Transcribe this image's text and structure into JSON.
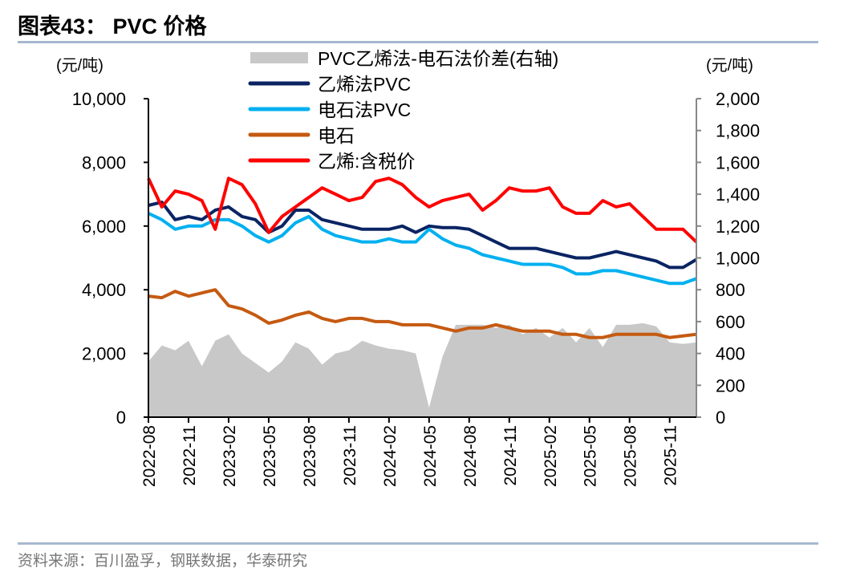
{
  "title": "图表43：  PVC 价格",
  "source": "资料来源：百川盈孚，钢联数据，华泰研究",
  "chart_data": {
    "type": "line",
    "left_unit": "(元/吨)",
    "right_unit": "(元/吨)",
    "left_ylim": [
      0,
      10000
    ],
    "right_ylim": [
      0,
      2000
    ],
    "left_ticks": [
      "0",
      "2,000",
      "4,000",
      "6,000",
      "8,000",
      "10,000"
    ],
    "right_ticks": [
      "0",
      "200",
      "400",
      "600",
      "800",
      "1,000",
      "1,200",
      "1,400",
      "1,600",
      "1,800",
      "2,000"
    ],
    "x_tick_labels": [
      "2022-08",
      "2022-11",
      "2023-02",
      "2023-05",
      "2023-08",
      "2023-11",
      "2024-02",
      "2024-05",
      "2024-08",
      "2024-11",
      "2025-02",
      "2025-05",
      "2025-08",
      "2025-11"
    ],
    "x": [
      "2022-08",
      "2022-09",
      "2022-10",
      "2022-11",
      "2022-12",
      "2023-01",
      "2023-02",
      "2023-03",
      "2023-04",
      "2023-05",
      "2023-06",
      "2023-07",
      "2023-08",
      "2023-09",
      "2023-10",
      "2023-11",
      "2023-12",
      "2024-01",
      "2024-02",
      "2024-03",
      "2024-04",
      "2024-05",
      "2024-06",
      "2024-07",
      "2024-08",
      "2024-09",
      "2024-10",
      "2024-11",
      "2024-12",
      "2025-01",
      "2025-02",
      "2025-03",
      "2025-04",
      "2025-05",
      "2025-06",
      "2025-07",
      "2025-08",
      "2025-09",
      "2025-10",
      "2025-11",
      "2025-12",
      "2026-01"
    ],
    "legend_position": "top",
    "grid": false,
    "series": [
      {
        "name": "PVC乙烯法-电石法价差(右轴)",
        "type": "area",
        "axis": "right",
        "color": "#c8c8c8",
        "values": [
          350,
          450,
          420,
          480,
          320,
          480,
          520,
          400,
          340,
          280,
          350,
          470,
          430,
          330,
          400,
          420,
          480,
          450,
          430,
          420,
          400,
          60,
          380,
          580,
          580,
          580,
          560,
          580,
          520,
          560,
          500,
          560,
          470,
          560,
          440,
          580,
          580,
          590,
          570,
          470,
          460,
          470
        ]
      },
      {
        "name": "乙烯法PVC",
        "type": "line",
        "axis": "left",
        "color": "#0a2463",
        "values": [
          6650,
          6750,
          6200,
          6300,
          6200,
          6500,
          6600,
          6300,
          6200,
          5800,
          6000,
          6500,
          6500,
          6200,
          6100,
          6000,
          5900,
          5900,
          5900,
          6000,
          5800,
          6000,
          5950,
          5950,
          5900,
          5700,
          5500,
          5300,
          5300,
          5300,
          5200,
          5100,
          5000,
          5000,
          5100,
          5200,
          5100,
          5000,
          4900,
          4700,
          4700,
          4950
        ]
      },
      {
        "name": "电石法PVC",
        "type": "line",
        "axis": "left",
        "color": "#00b0f0",
        "values": [
          6400,
          6200,
          5900,
          6000,
          6000,
          6200,
          6200,
          6000,
          5700,
          5500,
          5700,
          6100,
          6300,
          5900,
          5700,
          5600,
          5500,
          5500,
          5600,
          5500,
          5500,
          5900,
          5600,
          5400,
          5300,
          5100,
          5000,
          4900,
          4800,
          4800,
          4800,
          4700,
          4500,
          4500,
          4600,
          4600,
          4500,
          4400,
          4300,
          4200,
          4200,
          4350
        ]
      },
      {
        "name": "电石",
        "type": "line",
        "axis": "left",
        "color": "#c55a11",
        "values": [
          3800,
          3750,
          3950,
          3800,
          3900,
          4000,
          3500,
          3400,
          3200,
          2950,
          3050,
          3200,
          3300,
          3100,
          3000,
          3100,
          3100,
          3000,
          3000,
          2900,
          2900,
          2900,
          2800,
          2700,
          2800,
          2800,
          2900,
          2800,
          2700,
          2700,
          2700,
          2600,
          2600,
          2500,
          2500,
          2600,
          2600,
          2600,
          2600,
          2500,
          2550,
          2600
        ]
      },
      {
        "name": "乙烯:含税价",
        "type": "line",
        "axis": "left",
        "color": "#ff0000",
        "values": [
          7500,
          6600,
          7100,
          7000,
          6800,
          5900,
          7500,
          7300,
          6700,
          5800,
          6300,
          6600,
          6900,
          7200,
          7000,
          6800,
          6900,
          7400,
          7500,
          7300,
          6900,
          6600,
          6800,
          6900,
          7000,
          6500,
          6800,
          7200,
          7100,
          7100,
          7200,
          6600,
          6400,
          6400,
          6800,
          6600,
          6700,
          6300,
          5900,
          5900,
          5900,
          5500
        ]
      }
    ]
  }
}
